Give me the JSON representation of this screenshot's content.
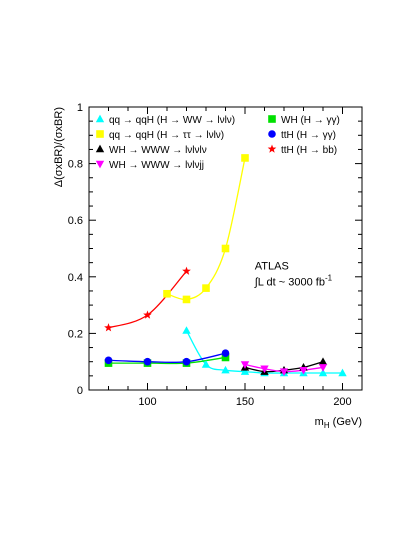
{
  "chart_data": {
    "type": "line",
    "xlabel": "m",
    "xlabel_sub": "H",
    "xlabel_unit": " (GeV)",
    "ylabel": "Δ(σxBR)/(σxBR)",
    "xlim": [
      70,
      210
    ],
    "ylim": [
      0,
      1
    ],
    "xticks": [
      100,
      150,
      200
    ],
    "yticks": [
      0,
      0.2,
      0.4,
      0.6,
      0.8,
      1
    ],
    "xtick_labels": [
      "100",
      "150",
      "200"
    ],
    "ytick_labels": [
      "0",
      "0.2",
      "0.4",
      "0.6",
      "0.8",
      "1"
    ],
    "grid": false,
    "legend_position": "top",
    "annotations": {
      "experiment": "ATLAS",
      "luminosity_prefix": "∫L dt ~ 3000 fb",
      "luminosity_exp": "-1"
    },
    "series": [
      {
        "name": "qq → qqH (H → WW → lνlν)",
        "marker": "triangle-up",
        "color": "#00ffff",
        "x": [
          120,
          130,
          140,
          150,
          160,
          170,
          180,
          190,
          200
        ],
        "y": [
          0.21,
          0.09,
          0.07,
          0.065,
          0.06,
          0.06,
          0.06,
          0.06,
          0.06
        ]
      },
      {
        "name": "qq → qqH (H → ττ → lνlν)",
        "marker": "square",
        "color": "#ffff00",
        "x": [
          110,
          120,
          130,
          140,
          150
        ],
        "y": [
          0.34,
          0.32,
          0.36,
          0.5,
          0.82
        ]
      },
      {
        "name": "WH → WWW → lνlνlν",
        "marker": "triangle-up",
        "color": "#000000",
        "x": [
          150,
          160,
          170,
          180,
          190
        ],
        "y": [
          0.08,
          0.065,
          0.07,
          0.08,
          0.1
        ]
      },
      {
        "name": "WH → WWW → lνlνjj",
        "marker": "triangle-down",
        "color": "#ff00ff",
        "x": [
          150,
          160,
          170,
          180,
          190
        ],
        "y": [
          0.09,
          0.075,
          0.065,
          0.07,
          0.08
        ]
      },
      {
        "name": "WH (H → γγ)",
        "marker": "square",
        "color": "#00e000",
        "x": [
          80,
          100,
          120,
          140
        ],
        "y": [
          0.095,
          0.095,
          0.095,
          0.115
        ]
      },
      {
        "name": "ttH (H → γγ)",
        "marker": "circle",
        "color": "#0000ff",
        "x": [
          80,
          100,
          120,
          140
        ],
        "y": [
          0.105,
          0.1,
          0.1,
          0.13
        ]
      },
      {
        "name": "ttH (H → bb)",
        "marker": "star",
        "color": "#ff0000",
        "x": [
          80,
          100,
          120
        ],
        "y": [
          0.22,
          0.265,
          0.42
        ]
      }
    ]
  }
}
